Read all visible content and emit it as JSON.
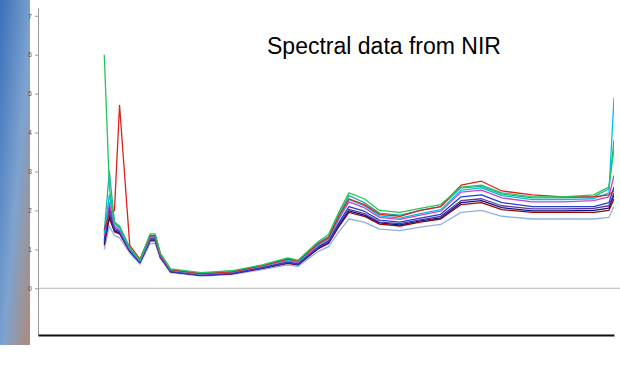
{
  "chart_data": {
    "type": "line",
    "title": "Spectral data from NIR",
    "x": [
      0,
      1,
      2,
      3,
      5,
      7,
      9,
      10,
      11,
      13,
      19,
      25,
      31,
      36,
      38,
      42,
      44,
      46,
      48,
      51,
      54,
      58,
      62,
      66,
      70,
      74,
      78,
      84,
      90,
      96,
      99,
      100
    ],
    "xlim": [
      -13,
      100
    ],
    "ylim": [
      -1.2,
      7.2
    ],
    "yticks": [
      0,
      1,
      2,
      3,
      4,
      5,
      6,
      7
    ],
    "tick_labels": "y",
    "grid": false,
    "series": [
      {
        "color": "#8fb0e6",
        "values": [
          1.0,
          1.6,
          1.35,
          1.3,
          0.9,
          0.62,
          1.15,
          1.15,
          0.76,
          0.4,
          0.31,
          0.35,
          0.48,
          0.6,
          0.56,
          0.95,
          1.07,
          1.45,
          1.78,
          1.7,
          1.52,
          1.48,
          1.57,
          1.64,
          1.95,
          2.0,
          1.85,
          1.78,
          1.78,
          1.78,
          1.82,
          2.1
        ]
      },
      {
        "color": "#a00000",
        "values": [
          1.1,
          1.8,
          1.45,
          1.4,
          0.95,
          0.66,
          1.22,
          1.22,
          0.8,
          0.42,
          0.33,
          0.37,
          0.51,
          0.64,
          0.6,
          1.02,
          1.15,
          1.58,
          1.95,
          1.85,
          1.65,
          1.6,
          1.7,
          1.78,
          2.15,
          2.2,
          2.02,
          1.95,
          1.95,
          1.95,
          2.0,
          2.3
        ]
      },
      {
        "color": "#001a80",
        "values": [
          1.15,
          1.9,
          1.48,
          1.42,
          0.96,
          0.66,
          1.24,
          1.24,
          0.81,
          0.43,
          0.33,
          0.38,
          0.52,
          0.65,
          0.61,
          1.03,
          1.17,
          1.6,
          1.99,
          1.88,
          1.68,
          1.63,
          1.73,
          1.81,
          2.2,
          2.25,
          2.07,
          1.99,
          1.99,
          2.0,
          2.06,
          2.4
        ]
      },
      {
        "color": "#6030a0",
        "values": [
          1.25,
          2.0,
          1.5,
          1.45,
          0.97,
          0.67,
          1.25,
          1.25,
          0.82,
          0.43,
          0.34,
          0.38,
          0.52,
          0.66,
          0.62,
          1.05,
          1.19,
          1.64,
          2.03,
          1.92,
          1.7,
          1.66,
          1.76,
          1.85,
          2.25,
          2.3,
          2.12,
          2.04,
          2.04,
          2.05,
          2.12,
          2.45
        ]
      },
      {
        "color": "#1f3fd0",
        "values": [
          1.2,
          2.1,
          1.55,
          1.45,
          0.98,
          0.68,
          1.28,
          1.28,
          0.83,
          0.44,
          0.34,
          0.39,
          0.54,
          0.68,
          0.63,
          1.07,
          1.22,
          1.68,
          2.1,
          1.98,
          1.75,
          1.7,
          1.8,
          1.9,
          2.35,
          2.4,
          2.2,
          2.1,
          2.1,
          2.1,
          2.2,
          2.6
        ]
      },
      {
        "color": "#d040c0",
        "values": [
          1.35,
          2.2,
          1.6,
          1.5,
          1.0,
          0.7,
          1.3,
          1.3,
          0.85,
          0.46,
          0.36,
          0.41,
          0.56,
          0.71,
          0.66,
          1.11,
          1.26,
          1.77,
          2.22,
          2.07,
          1.82,
          1.77,
          1.88,
          1.98,
          2.47,
          2.52,
          2.32,
          2.22,
          2.22,
          2.25,
          2.35,
          2.9
        ]
      },
      {
        "color": "#20b0a0",
        "values": [
          1.45,
          3.0,
          1.7,
          1.58,
          1.04,
          0.73,
          1.36,
          1.36,
          0.88,
          0.48,
          0.38,
          0.43,
          0.59,
          0.76,
          0.7,
          1.17,
          1.33,
          1.88,
          2.38,
          2.2,
          1.93,
          1.88,
          2.0,
          2.1,
          2.58,
          2.62,
          2.42,
          2.32,
          2.32,
          2.35,
          2.55,
          3.8
        ]
      },
      {
        "color": "#00c0e0",
        "values": [
          1.4,
          2.4,
          1.65,
          1.55,
          1.02,
          0.71,
          1.33,
          1.33,
          0.87,
          0.47,
          0.37,
          0.42,
          0.57,
          0.73,
          0.68,
          1.13,
          1.28,
          1.8,
          2.28,
          2.12,
          1.86,
          1.8,
          1.92,
          2.02,
          2.52,
          2.58,
          2.38,
          2.28,
          2.28,
          2.3,
          2.45,
          4.9
        ]
      },
      {
        "color": "#e0201b",
        "values": [
          1.5,
          1.9,
          2.0,
          4.7,
          1.1,
          0.75,
          1.35,
          1.35,
          0.88,
          0.48,
          0.38,
          0.42,
          0.58,
          0.75,
          0.7,
          1.15,
          1.3,
          1.85,
          2.3,
          2.15,
          1.9,
          1.85,
          2.0,
          2.1,
          2.65,
          2.75,
          2.5,
          2.4,
          2.35,
          2.35,
          2.4,
          2.5
        ]
      },
      {
        "color": "#22c55e",
        "values": [
          6.0,
          2.6,
          1.7,
          1.6,
          1.05,
          0.72,
          1.4,
          1.4,
          0.9,
          0.5,
          0.4,
          0.45,
          0.6,
          0.78,
          0.72,
          1.2,
          1.38,
          1.95,
          2.45,
          2.3,
          2.0,
          1.95,
          2.05,
          2.15,
          2.6,
          2.65,
          2.45,
          2.35,
          2.35,
          2.4,
          2.6,
          3.6
        ]
      }
    ]
  }
}
